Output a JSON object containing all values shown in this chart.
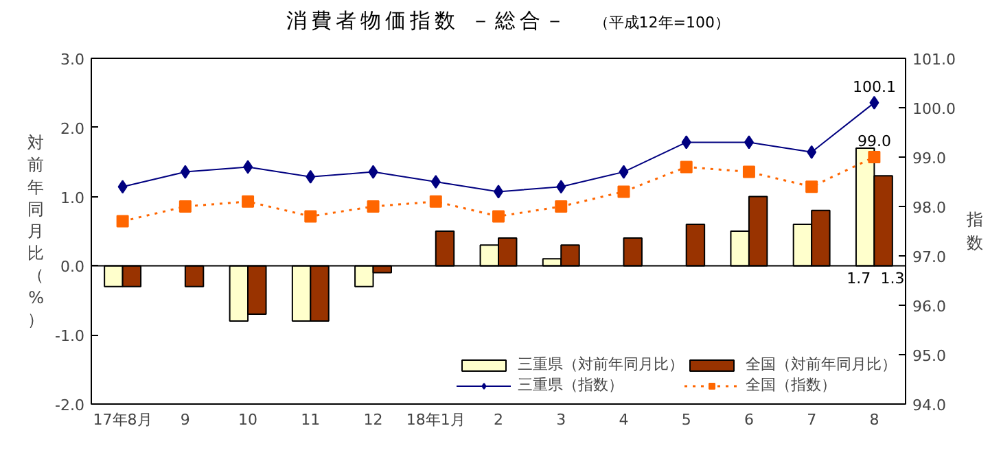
{
  "chart_data": {
    "type": "bar",
    "title": "消費者物価指数 －総合－",
    "subtitle": "（平成12年=100）",
    "ylabel": "対前年同月比（%）",
    "y2label": "指数",
    "categories": [
      "17年8月",
      "9",
      "10",
      "11",
      "12",
      "18年1月",
      "2",
      "3",
      "4",
      "5",
      "6",
      "7",
      "8"
    ],
    "series": [
      {
        "name": "三重県（対前年同月比）",
        "color": "#ffffcc",
        "values": [
          -0.3,
          null,
          -0.8,
          -0.8,
          -0.3,
          null,
          0.3,
          0.1,
          null,
          null,
          0.5,
          0.6,
          1.7
        ],
        "value_labels": [
          null,
          null,
          null,
          null,
          null,
          null,
          null,
          null,
          null,
          null,
          null,
          null,
          "1.7"
        ]
      },
      {
        "name": "全国（対前年同月比）",
        "color": "#993300",
        "values": [
          -0.3,
          -0.3,
          -0.7,
          -0.8,
          -0.1,
          0.5,
          0.4,
          0.3,
          0.4,
          0.6,
          1.0,
          0.8,
          1.3
        ],
        "value_labels": [
          null,
          null,
          null,
          null,
          null,
          null,
          null,
          null,
          null,
          null,
          null,
          null,
          "1.3"
        ]
      },
      {
        "name": "三重県（指数）",
        "type": "line",
        "axis": "y2",
        "color": "#000080",
        "marker": "diamond",
        "line_style": "solid",
        "values": [
          98.4,
          98.7,
          98.8,
          98.6,
          98.7,
          98.5,
          98.3,
          98.4,
          98.7,
          99.3,
          99.3,
          99.1,
          100.1
        ],
        "value_labels": [
          null,
          null,
          null,
          null,
          null,
          null,
          null,
          null,
          null,
          null,
          null,
          null,
          "100.1"
        ]
      },
      {
        "name": "全国（指数）",
        "type": "line",
        "axis": "y2",
        "color": "#ff6600",
        "marker": "square",
        "line_style": "dotted",
        "values": [
          97.7,
          98.0,
          98.1,
          97.8,
          98.0,
          98.1,
          97.8,
          98.0,
          98.3,
          98.8,
          98.7,
          98.4,
          99.0
        ],
        "value_labels": [
          null,
          null,
          null,
          null,
          null,
          null,
          null,
          null,
          null,
          null,
          null,
          null,
          "99.0"
        ]
      }
    ],
    "ylim": [
      -2.0,
      3.0
    ],
    "yticks": [
      {
        "value": -2,
        "label": "-2.0"
      },
      {
        "value": -1,
        "label": "-1.0"
      },
      {
        "value": 0,
        "label": "0.0"
      },
      {
        "value": 1,
        "label": "1.0"
      },
      {
        "value": 2,
        "label": "2.0"
      },
      {
        "value": 3,
        "label": "3.0"
      }
    ],
    "y2lim": [
      94.0,
      101.0
    ],
    "y2ticks": [
      {
        "value": 94,
        "label": "94.0"
      },
      {
        "value": 95,
        "label": "95.0"
      },
      {
        "value": 96,
        "label": "96.0"
      },
      {
        "value": 97,
        "label": "97.0"
      },
      {
        "value": 98,
        "label": "98.0"
      },
      {
        "value": 99,
        "label": "99.0"
      },
      {
        "value": 100,
        "label": "100.0"
      },
      {
        "value": 101,
        "label": "101.0"
      }
    ],
    "ref_lines": [
      {
        "axis": "y",
        "value": 0,
        "color": "#000000"
      }
    ],
    "grid": false,
    "legend": "bottom right"
  }
}
